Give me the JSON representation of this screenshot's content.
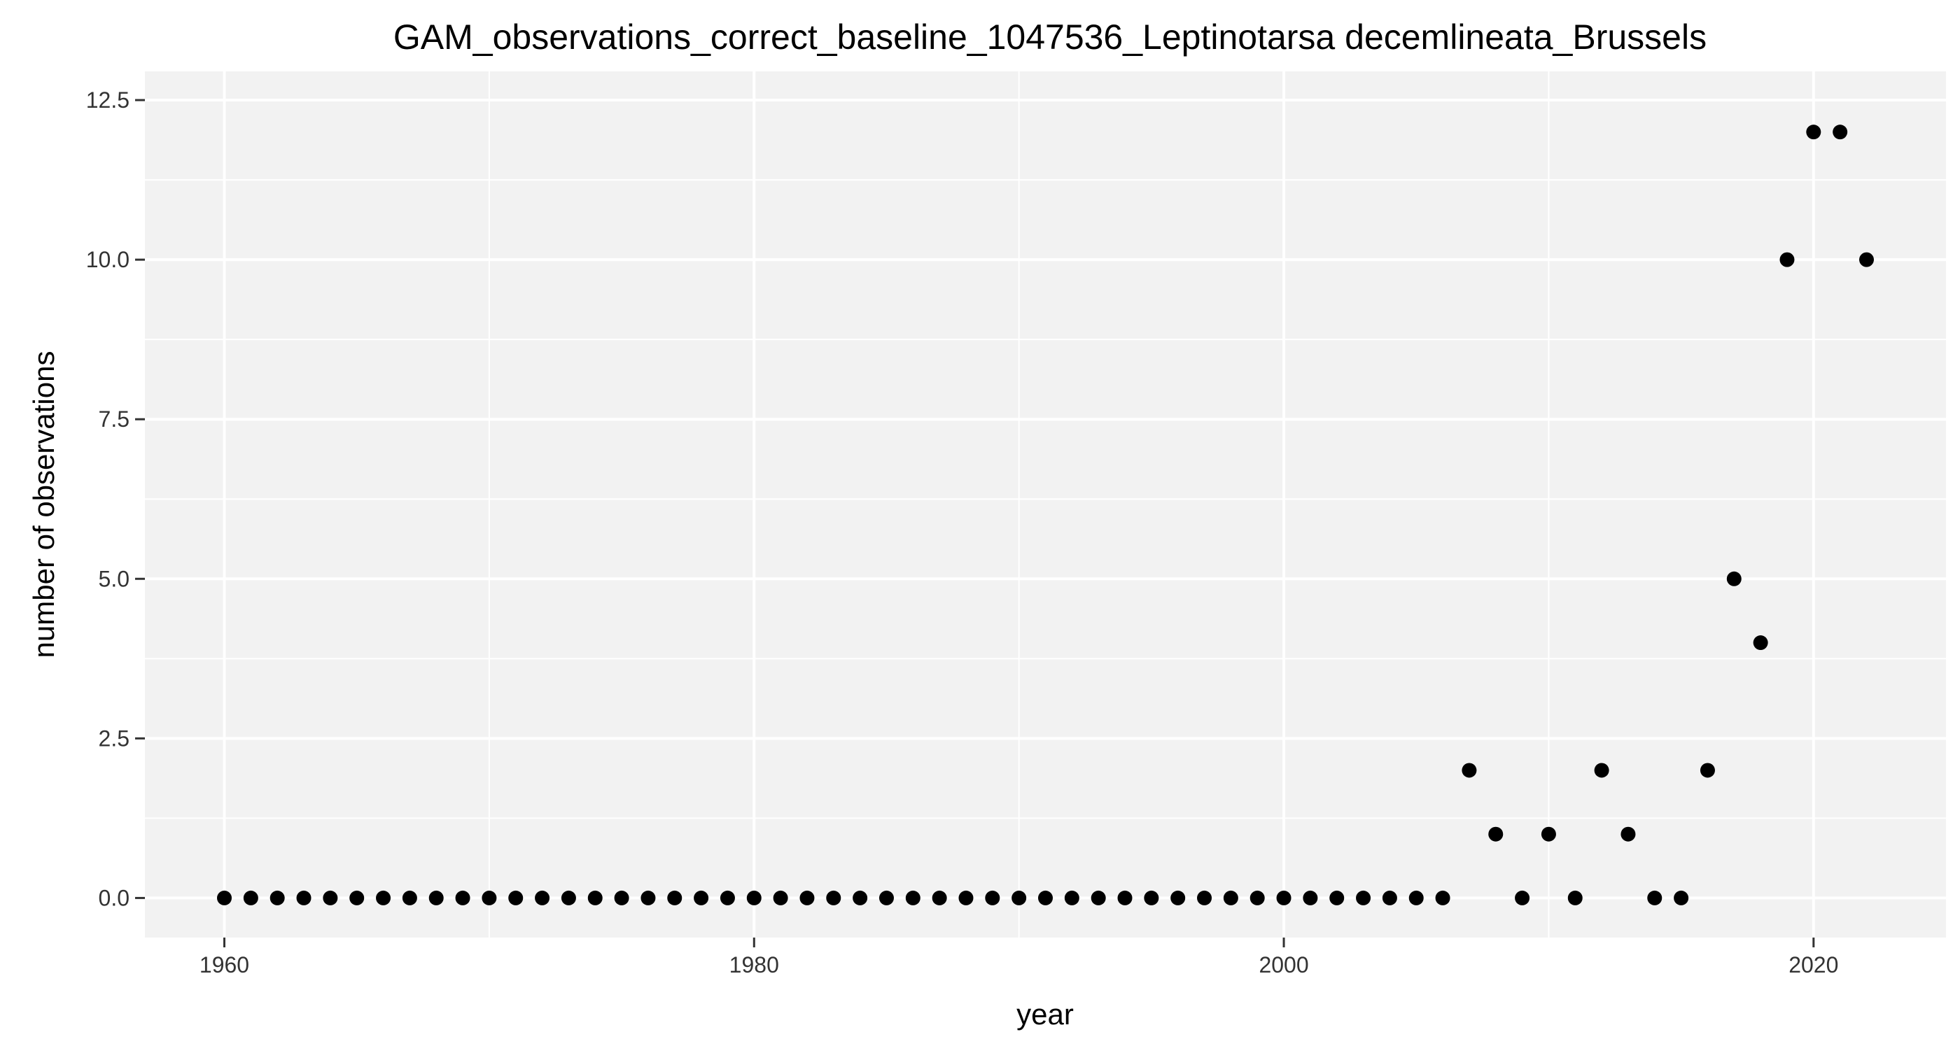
{
  "chart_data": {
    "type": "scatter",
    "title": "GAM_observations_correct_baseline_1047536_Leptinotarsa decemlineata_Brussels",
    "xlabel": "year",
    "ylabel": "number of observations",
    "xlim": [
      1957,
      2025
    ],
    "ylim": [
      -0.62,
      12.95
    ],
    "x_ticks": [
      1960,
      1980,
      2000,
      2020
    ],
    "x_tick_labels": [
      "1960",
      "1980",
      "2000",
      "2020"
    ],
    "x_minor_ticks": [
      1970,
      1990,
      2010
    ],
    "y_ticks": [
      0,
      2.5,
      5,
      7.5,
      10,
      12.5
    ],
    "y_tick_labels": [
      "0.0",
      "2.5",
      "5.0",
      "7.5",
      "10.0",
      "12.5"
    ],
    "y_minor_ticks": [
      1.25,
      3.75,
      6.25,
      8.75,
      11.25
    ],
    "grid": true,
    "legend": "none",
    "colors": {
      "panel_background": "#f2f2f2",
      "grid": "#ffffff",
      "point": "#000000",
      "tick": "#333333"
    },
    "x": [
      1960,
      1961,
      1962,
      1963,
      1964,
      1965,
      1966,
      1967,
      1968,
      1969,
      1970,
      1971,
      1972,
      1973,
      1974,
      1975,
      1976,
      1977,
      1978,
      1979,
      1980,
      1981,
      1982,
      1983,
      1984,
      1985,
      1986,
      1987,
      1988,
      1989,
      1990,
      1991,
      1992,
      1993,
      1994,
      1995,
      1996,
      1997,
      1998,
      1999,
      2000,
      2001,
      2002,
      2003,
      2004,
      2005,
      2006,
      2007,
      2008,
      2009,
      2010,
      2011,
      2012,
      2013,
      2014,
      2015,
      2016,
      2017,
      2018,
      2019,
      2020,
      2021,
      2022
    ],
    "y": [
      0,
      0,
      0,
      0,
      0,
      0,
      0,
      0,
      0,
      0,
      0,
      0,
      0,
      0,
      0,
      0,
      0,
      0,
      0,
      0,
      0,
      0,
      0,
      0,
      0,
      0,
      0,
      0,
      0,
      0,
      0,
      0,
      0,
      0,
      0,
      0,
      0,
      0,
      0,
      0,
      0,
      0,
      0,
      0,
      0,
      0,
      0,
      2,
      1,
      0,
      1,
      0,
      2,
      1,
      0,
      0,
      2,
      5,
      4,
      10,
      12,
      12,
      10
    ]
  }
}
